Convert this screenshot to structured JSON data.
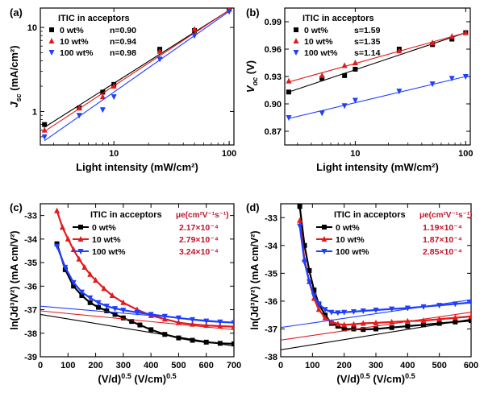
{
  "chart_data": [
    {
      "panel": "(a)",
      "type": "scatter",
      "xscale": "log",
      "yscale": "log",
      "xlabel": "Light intensity (mW/cm²)",
      "ylabel_main": "J",
      "ylabel_sub": "sc",
      "ylabel_unit": " (mA/cm²)",
      "xlim": [
        2.3,
        110
      ],
      "ylim": [
        0.4,
        17
      ],
      "xticks": [
        {
          "v": 10,
          "label": "10"
        },
        {
          "v": 100,
          "label": "100"
        }
      ],
      "xminor": [
        3,
        4,
        5,
        6,
        7,
        8,
        9,
        20,
        30,
        40,
        50,
        60,
        70,
        80,
        90
      ],
      "yticks": [
        {
          "v": 1,
          "label": "1"
        },
        {
          "v": 10,
          "label": "10"
        }
      ],
      "yminor": [
        0.4,
        0.5,
        0.6,
        0.7,
        0.8,
        0.9,
        2,
        3,
        4,
        5,
        6,
        7,
        8,
        9
      ],
      "legend_title": "ITIC in acceptors",
      "legend_position": "top-left",
      "series": [
        {
          "name": "0 wt%",
          "stat": "n=0.90",
          "color": "#000000",
          "marker": "square",
          "x": [
            2.5,
            5,
            8,
            10,
            25,
            50,
            100
          ],
          "y": [
            0.7,
            1.1,
            1.7,
            2.1,
            5.5,
            9.2,
            16.5
          ],
          "fit": {
            "x": [
              2.5,
              100
            ],
            "y": [
              0.65,
              16.0
            ]
          }
        },
        {
          "name": "10 wt%",
          "stat": "n=0.94",
          "color": "#e31a1c",
          "marker": "triangle-up",
          "x": [
            2.5,
            5,
            8,
            10,
            25,
            50,
            100
          ],
          "y": [
            0.6,
            1.1,
            1.5,
            2.0,
            5.2,
            9.5,
            16.8
          ],
          "fit": {
            "x": [
              2.5,
              100
            ],
            "y": [
              0.58,
              16.0
            ]
          }
        },
        {
          "name": "100 wt%",
          "stat": "n=0.98",
          "color": "#1f3fff",
          "marker": "triangle-down",
          "x": [
            2.5,
            5,
            8,
            10,
            25,
            50,
            100
          ],
          "y": [
            0.5,
            0.9,
            1.05,
            1.5,
            4.2,
            8.0,
            15.5
          ],
          "fit": {
            "x": [
              2.5,
              100
            ],
            "y": [
              0.45,
              15.5
            ]
          }
        }
      ]
    },
    {
      "panel": "(b)",
      "type": "scatter",
      "xscale": "log",
      "yscale": "linear",
      "xlabel": "Light intensity (mW/cm²)",
      "ylabel_main": "V",
      "ylabel_sub": "oc",
      "ylabel_unit": " (V)",
      "xlim": [
        2.3,
        110
      ],
      "ylim": [
        0.855,
        1.005
      ],
      "xticks": [
        {
          "v": 10,
          "label": "10"
        },
        {
          "v": 100,
          "label": "100"
        }
      ],
      "xminor": [
        3,
        4,
        5,
        6,
        7,
        8,
        9,
        20,
        30,
        40,
        50,
        60,
        70,
        80,
        90
      ],
      "yticks": [
        {
          "v": 0.87,
          "label": "0.87"
        },
        {
          "v": 0.9,
          "label": "0.90"
        },
        {
          "v": 0.93,
          "label": "0.93"
        },
        {
          "v": 0.96,
          "label": "0.96"
        },
        {
          "v": 0.99,
          "label": "0.99"
        }
      ],
      "legend_title": "ITIC in acceptors",
      "legend_position": "top-left",
      "series": [
        {
          "name": "0 wt%",
          "stat": "s=1.59",
          "color": "#000000",
          "marker": "square",
          "x": [
            2.5,
            5,
            8,
            10,
            25,
            50,
            75,
            100
          ],
          "y": [
            0.913,
            0.928,
            0.931,
            0.938,
            0.96,
            0.965,
            0.971,
            0.978
          ],
          "fit": {
            "x": [
              2.5,
              100
            ],
            "y": [
              0.913,
              0.978
            ]
          }
        },
        {
          "name": "10 wt%",
          "stat": "s=1.35",
          "color": "#e31a1c",
          "marker": "triangle-up",
          "x": [
            2.5,
            5,
            8,
            10,
            25,
            50,
            75,
            100
          ],
          "y": [
            0.925,
            0.931,
            0.942,
            0.945,
            0.958,
            0.967,
            0.974,
            0.978
          ],
          "fit": {
            "x": [
              2.5,
              100
            ],
            "y": [
              0.924,
              0.978
            ]
          }
        },
        {
          "name": "100 wt%",
          "stat": "s=1.14",
          "color": "#1f3fff",
          "marker": "triangle-down",
          "x": [
            2.5,
            5,
            8,
            10,
            25,
            50,
            75,
            100
          ],
          "y": [
            0.885,
            0.89,
            0.898,
            0.904,
            0.914,
            0.922,
            0.928,
            0.93
          ],
          "fit": {
            "x": [
              2.5,
              100
            ],
            "y": [
              0.884,
              0.93
            ]
          }
        }
      ]
    },
    {
      "panel": "(c)",
      "type": "line",
      "xscale": "linear",
      "yscale": "linear",
      "xlabel_main": "(V/d)",
      "xlabel_sup": "0.5",
      "xlabel_unit": " (V/cm)",
      "xlabel_unit_sup": "0.5",
      "ylabel": "ln(Jd³/V²) (mA cm/V²)",
      "xlim": [
        0,
        700
      ],
      "ylim": [
        -39,
        -32.5
      ],
      "xticks": [
        0,
        100,
        200,
        300,
        400,
        500,
        600,
        700
      ],
      "yticks": [
        -39,
        -38,
        -37,
        -36,
        -35,
        -34,
        -33
      ],
      "legend_title": "ITIC in acceptors",
      "mobility_header": "μe(cm²V⁻¹s⁻¹)",
      "legend_position": "top-right",
      "series": [
        {
          "name": "0 wt%",
          "mobility": "2.17×10⁻⁴",
          "color": "#000000",
          "marker": "square",
          "x": [
            60,
            90,
            120,
            150,
            180,
            210,
            240,
            270,
            300,
            330,
            360,
            400,
            450,
            500,
            550,
            600,
            650,
            700
          ],
          "y": [
            -34.2,
            -35.3,
            -36.0,
            -36.4,
            -36.7,
            -36.9,
            -37.05,
            -37.2,
            -37.35,
            -37.5,
            -37.65,
            -37.85,
            -38.05,
            -38.2,
            -38.3,
            -38.38,
            -38.43,
            -38.45
          ],
          "fit": {
            "x": [
              0,
              700
            ],
            "y": [
              -37.2,
              -38.55
            ]
          }
        },
        {
          "name": "10 wt%",
          "mobility": "2.79×10⁻⁴",
          "color": "#e31a1c",
          "marker": "triangle-up",
          "x": [
            60,
            80,
            100,
            120,
            140,
            160,
            180,
            200,
            230,
            260,
            300,
            350,
            400,
            450,
            500,
            550,
            600,
            650,
            700
          ],
          "y": [
            -32.8,
            -33.5,
            -34.0,
            -34.45,
            -34.85,
            -35.2,
            -35.5,
            -35.75,
            -36.1,
            -36.4,
            -36.7,
            -37.0,
            -37.25,
            -37.4,
            -37.55,
            -37.62,
            -37.67,
            -37.7,
            -37.72
          ],
          "fit": {
            "x": [
              0,
              700
            ],
            "y": [
              -37.05,
              -37.85
            ]
          }
        },
        {
          "name": "100 wt%",
          "mobility": "3.24×10⁻⁴",
          "color": "#1f3fff",
          "marker": "triangle-down",
          "x": [
            60,
            90,
            120,
            150,
            180,
            210,
            240,
            270,
            300,
            350,
            400,
            450,
            500,
            550,
            600,
            650,
            700
          ],
          "y": [
            -34.3,
            -35.2,
            -35.85,
            -36.25,
            -36.5,
            -36.7,
            -36.85,
            -36.95,
            -37.02,
            -37.12,
            -37.2,
            -37.28,
            -37.35,
            -37.42,
            -37.48,
            -37.52,
            -37.55
          ],
          "fit": {
            "x": [
              0,
              700
            ],
            "y": [
              -36.85,
              -37.55
            ]
          }
        }
      ]
    },
    {
      "panel": "(d)",
      "type": "line",
      "xscale": "linear",
      "yscale": "linear",
      "xlabel_main": "(V/d)",
      "xlabel_sup": "0.5",
      "xlabel_unit": " (V/cm)",
      "xlabel_unit_sup": "0.5",
      "ylabel": "ln(Jd³/V²) (mA cm/V²)",
      "xlim": [
        0,
        600
      ],
      "ylim": [
        -38,
        -32.5
      ],
      "xticks": [
        0,
        100,
        200,
        300,
        400,
        500,
        600
      ],
      "yticks": [
        -38,
        -37,
        -36,
        -35,
        -34,
        -33
      ],
      "legend_title": "ITIC in acceptors",
      "mobility_header": "μe(cm²V⁻¹s⁻¹)",
      "legend_position": "top-right",
      "series": [
        {
          "name": "0 wt%",
          "mobility": "1.19×10⁻⁴",
          "color": "#000000",
          "marker": "square",
          "x": [
            60,
            75,
            90,
            105,
            120,
            140,
            160,
            180,
            200,
            230,
            260,
            300,
            350,
            400,
            450,
            500,
            550,
            600
          ],
          "y": [
            -32.6,
            -34.0,
            -34.9,
            -35.6,
            -36.1,
            -36.5,
            -36.8,
            -36.9,
            -37.0,
            -37.0,
            -37.02,
            -37.0,
            -36.95,
            -36.9,
            -36.85,
            -36.8,
            -36.75,
            -36.7
          ],
          "fit": {
            "x": [
              0,
              600
            ],
            "y": [
              -37.75,
              -36.65
            ]
          }
        },
        {
          "name": "10 wt%",
          "mobility": "1.87×10⁻⁴",
          "color": "#e31a1c",
          "marker": "triangle-up",
          "x": [
            60,
            75,
            90,
            105,
            120,
            140,
            160,
            180,
            200,
            230,
            260,
            300,
            350,
            400,
            450,
            500,
            550,
            600
          ],
          "y": [
            -33.1,
            -34.5,
            -35.3,
            -35.9,
            -36.3,
            -36.6,
            -36.75,
            -36.82,
            -36.85,
            -36.83,
            -36.8,
            -36.78,
            -36.75,
            -36.72,
            -36.7,
            -36.65,
            -36.6,
            -36.55
          ],
          "fit": {
            "x": [
              0,
              600
            ],
            "y": [
              -37.4,
              -36.4
            ]
          }
        },
        {
          "name": "100 wt%",
          "mobility": "2.85×10⁻⁴",
          "color": "#1f3fff",
          "marker": "triangle-down",
          "x": [
            60,
            75,
            90,
            105,
            120,
            140,
            160,
            180,
            200,
            230,
            260,
            300,
            350,
            400,
            450,
            500,
            550,
            600
          ],
          "y": [
            -33.3,
            -34.6,
            -35.3,
            -35.8,
            -36.1,
            -36.3,
            -36.4,
            -36.42,
            -36.4,
            -36.38,
            -36.35,
            -36.32,
            -36.28,
            -36.25,
            -36.2,
            -36.15,
            -36.1,
            -36.05
          ],
          "fit": {
            "x": [
              0,
              600
            ],
            "y": [
              -36.95,
              -35.95
            ]
          }
        }
      ]
    }
  ]
}
